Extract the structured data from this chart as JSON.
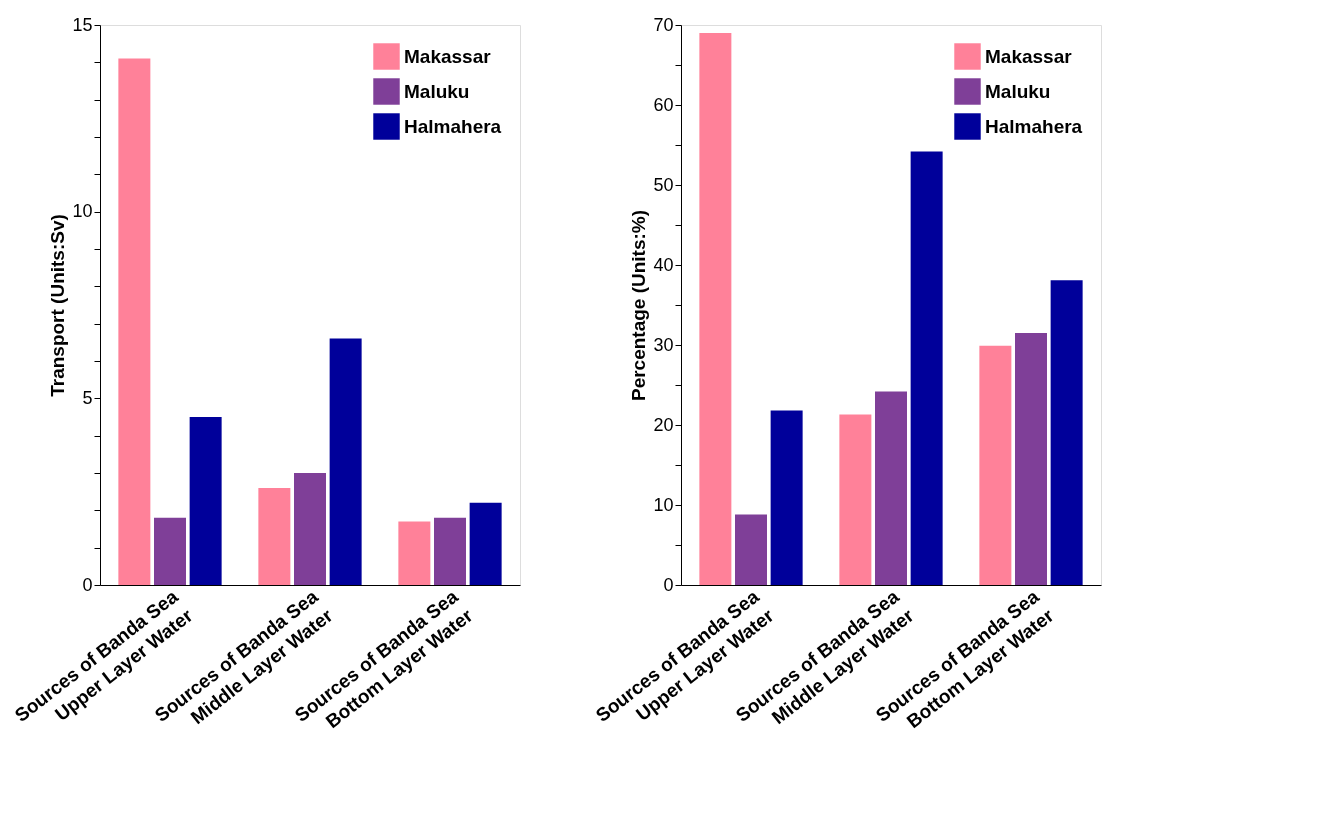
{
  "chart_data": [
    {
      "type": "bar",
      "ylabel": "Transport (Units:Sv)",
      "categories": [
        "Sources of Banda Sea\nUpper Layer Water",
        "Sources of Banda Sea\nMiddle Layer Water",
        "Sources of Banda Sea\nBottom Layer Water"
      ],
      "series": [
        {
          "name": "Makassar",
          "color": "#ff8199",
          "values": [
            14.1,
            2.6,
            1.7
          ]
        },
        {
          "name": "Maluku",
          "color": "#7f3f98",
          "values": [
            1.8,
            3.0,
            1.8
          ]
        },
        {
          "name": "Halmahera",
          "color": "#00009a",
          "values": [
            4.5,
            6.6,
            2.2
          ]
        }
      ],
      "ylim": [
        0,
        15
      ],
      "yticks": [
        0,
        {
          "value": 1,
          "label": null
        },
        {
          "value": 2,
          "label": null
        },
        {
          "value": 3,
          "label": null
        },
        {
          "value": 4,
          "label": null
        },
        5,
        {
          "value": 6,
          "label": null
        },
        {
          "value": 7,
          "label": null
        },
        {
          "value": 8,
          "label": null
        },
        {
          "value": 9,
          "label": null
        },
        10,
        {
          "value": 11,
          "label": null
        },
        {
          "value": 12,
          "label": null
        },
        {
          "value": 13,
          "label": null
        },
        {
          "value": 14,
          "label": null
        },
        15
      ],
      "legend": "top right",
      "grid": false
    },
    {
      "type": "bar",
      "ylabel": "Percentage (Units:%)",
      "categories": [
        "Sources of Banda Sea\nUpper Layer Water",
        "Sources of Banda Sea\nMiddle Layer Water",
        "Sources of Banda Sea\nBottom Layer Water"
      ],
      "series": [
        {
          "name": "Makassar",
          "color": "#ff8199",
          "values": [
            69,
            21.3,
            29.9
          ]
        },
        {
          "name": "Maluku",
          "color": "#7f3f98",
          "values": [
            8.8,
            24.2,
            31.5
          ]
        },
        {
          "name": "Halmahera",
          "color": "#00009a",
          "values": [
            21.8,
            54.2,
            38.1
          ]
        }
      ],
      "ylim": [
        0,
        70
      ],
      "yticks": [
        0,
        {
          "value": 5,
          "label": null
        },
        10,
        {
          "value": 15,
          "label": null
        },
        20,
        {
          "value": 25,
          "label": null
        },
        30,
        {
          "value": 35,
          "label": null
        },
        40,
        {
          "value": 45,
          "label": null
        },
        50,
        {
          "value": 55,
          "label": null
        },
        60,
        {
          "value": 65,
          "label": null
        },
        70
      ],
      "legend": "top right",
      "grid": false
    }
  ]
}
